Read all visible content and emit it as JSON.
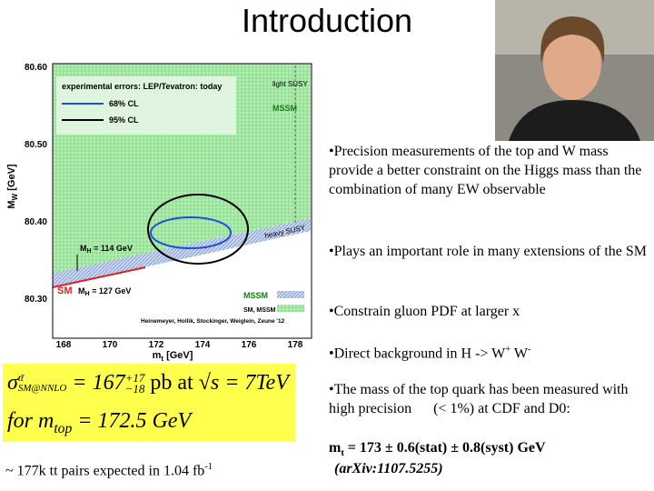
{
  "title": "Introduction",
  "plot": {
    "y_label": "M",
    "y_label_sub": "W",
    "y_label_unit": " [GeV]",
    "x_label": "m",
    "x_label_sub": "t",
    "x_label_unit": " [GeV]",
    "yticks": [
      "80.60",
      "80.50",
      "80.40",
      "80.30"
    ],
    "xticks": [
      "168",
      "170",
      "172",
      "174",
      "176",
      "178"
    ],
    "legend_title": "experimental errors: LEP/Tevatron: today",
    "legend": [
      "68% CL",
      "95% CL"
    ],
    "light_susy": "light SUSY",
    "mssm_top": "MSSM",
    "heavy_susy": "heavy SUSY",
    "mh_low": [
      "M",
      "H",
      " = 114 GeV"
    ],
    "sm": "SM",
    "mh_high": [
      "M",
      "H",
      " = 127 GeV"
    ],
    "key_mssm": "MSSM",
    "key_sm_mssm": "SM, MSSM",
    "credits": "Heinemeyer, Hollik, Stockinger, Weiglein, Zeune '12"
  },
  "formula": {
    "sigma": "σ",
    "sigma_sup": "tt̄",
    "sigma_sub": "SM@NNLO",
    "value": " = 167",
    "err_up": "+17",
    "err_down": "−18",
    "unit": " pb at ",
    "energy": "√s = 7TeV",
    "line2": "for m",
    "line2_sub": "top",
    "line2_value": " = 172.5 GeV"
  },
  "pairs": {
    "text": "~ 177k tt pairs expected in 1.04 fb",
    "sup": "-1"
  },
  "bullets": [
    {
      "text": "•Precision measurements of the top and W mass provide a better constraint on the Higgs mass than the combination of many EW observable"
    },
    {
      "text": "•Plays an important role in many extensions of the SM"
    },
    {
      "text": "•Constrain gluon PDF at larger x"
    },
    {
      "parts": [
        "•Direct background in H -> W",
        "+",
        " W",
        "-"
      ]
    },
    {
      "text": "•The mass of the top quark has been measured with high precision      (< 1%) at CDF and D0:",
      "result": [
        "m",
        "t",
        " = 173 ± 0.6(stat) ± 0.8(syst) GeV"
      ],
      "ref": "(arXiv:1107.5255)"
    }
  ]
}
